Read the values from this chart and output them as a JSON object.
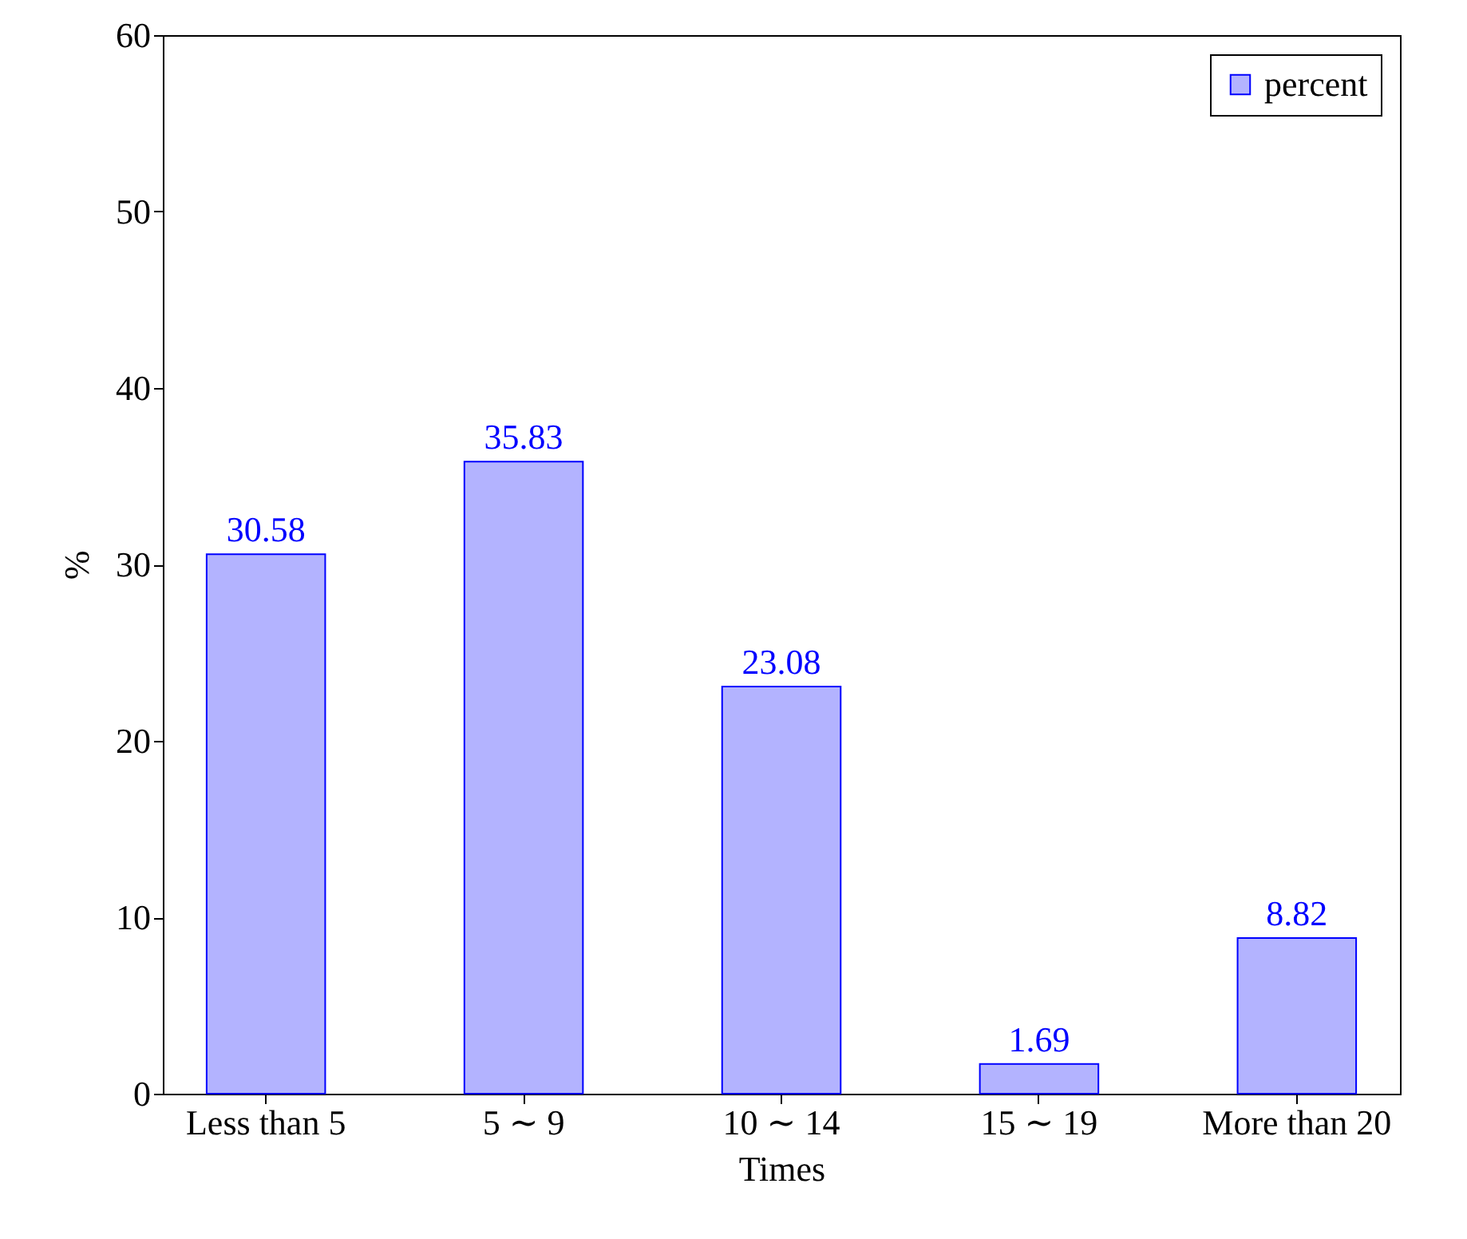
{
  "chart_data": {
    "type": "bar",
    "categories": [
      "Less than 5",
      "5 ∼ 9",
      "10 ∼ 14",
      "15 ∼ 19",
      "More than 20"
    ],
    "series": [
      {
        "name": "percent",
        "color": "#b3b3ff",
        "values": [
          30.58,
          35.83,
          23.08,
          1.69,
          8.82
        ]
      }
    ],
    "xlabel": "Times",
    "ylabel": "%",
    "ylim": [
      0,
      60
    ],
    "yticks": [
      0,
      10,
      20,
      30,
      40,
      50,
      60
    ],
    "data_labels": true,
    "legend": "top right",
    "grid": false
  }
}
